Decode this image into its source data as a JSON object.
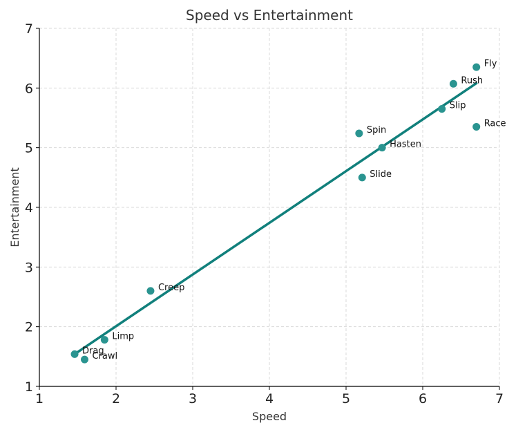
{
  "colors": {
    "point": "#2a9490",
    "trend": "#11807c",
    "grid": "#d9d9d9"
  },
  "chart_data": {
    "type": "scatter",
    "title": "Speed vs Entertainment",
    "xlabel": "Speed",
    "ylabel": "Entertainment",
    "xlim": [
      1,
      7
    ],
    "ylim": [
      1,
      7
    ],
    "xticks": [
      1,
      2,
      3,
      4,
      5,
      6,
      7
    ],
    "yticks": [
      1,
      2,
      3,
      4,
      5,
      6,
      7
    ],
    "grid": true,
    "points": [
      {
        "label": "Fly",
        "x": 6.7,
        "y": 6.35
      },
      {
        "label": "Rush",
        "x": 6.4,
        "y": 6.07
      },
      {
        "label": "Slip",
        "x": 6.25,
        "y": 5.65
      },
      {
        "label": "Race",
        "x": 6.7,
        "y": 5.35
      },
      {
        "label": "Spin",
        "x": 5.17,
        "y": 5.24
      },
      {
        "label": "Hasten",
        "x": 5.47,
        "y": 5.0
      },
      {
        "label": "Slide",
        "x": 5.21,
        "y": 4.5
      },
      {
        "label": "Creep",
        "x": 2.45,
        "y": 2.6
      },
      {
        "label": "Limp",
        "x": 1.85,
        "y": 1.78
      },
      {
        "label": "Drag",
        "x": 1.46,
        "y": 1.54
      },
      {
        "label": "Crawl",
        "x": 1.59,
        "y": 1.45
      }
    ],
    "trendline": {
      "x": [
        1.46,
        6.7
      ],
      "y": [
        1.54,
        6.08
      ]
    }
  }
}
